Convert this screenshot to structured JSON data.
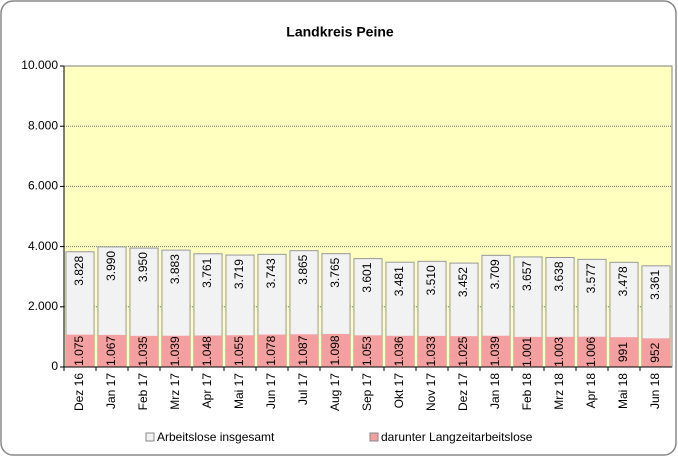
{
  "chart_data": {
    "type": "overlap-bar",
    "title": "Landkreis Peine",
    "categories": [
      "Dez 16",
      "Jan 17",
      "Feb 17",
      "Mrz 17",
      "Apr 17",
      "Mai 17",
      "Jun 17",
      "Jul 17",
      "Aug 17",
      "Sep 17",
      "Okt 17",
      "Nov 17",
      "Dez 17",
      "Jan 18",
      "Feb 18",
      "Mrz 18",
      "Apr 18",
      "Mai 18",
      "Jun 18"
    ],
    "series": [
      {
        "name": "Arbeitslose insgesamt",
        "color": "#f2f2f2",
        "values": [
          3828,
          3990,
          3950,
          3883,
          3761,
          3719,
          3743,
          3865,
          3765,
          3601,
          3481,
          3510,
          3452,
          3709,
          3657,
          3638,
          3577,
          3478,
          3361
        ],
        "value_labels": [
          "3.828",
          "3.990",
          "3.950",
          "3.883",
          "3.761",
          "3.719",
          "3.743",
          "3.865",
          "3.765",
          "3.601",
          "3.481",
          "3.510",
          "3.452",
          "3.709",
          "3.657",
          "3.638",
          "3.577",
          "3.478",
          "3.361"
        ]
      },
      {
        "name": "darunter Langzeitarbeitslose",
        "color": "#f4a0a0",
        "values": [
          1075,
          1067,
          1035,
          1039,
          1048,
          1055,
          1078,
          1087,
          1098,
          1053,
          1036,
          1033,
          1025,
          1039,
          1001,
          1003,
          1006,
          991,
          952
        ],
        "value_labels": [
          "1.075",
          "1.067",
          "1.035",
          "1.039",
          "1.048",
          "1.055",
          "1.078",
          "1.087",
          "1.098",
          "1.053",
          "1.036",
          "1.033",
          "1.025",
          "1.039",
          "1.001",
          "1.003",
          "1.006",
          "991",
          "952"
        ]
      }
    ],
    "ylim": [
      0,
      10000
    ],
    "yticks": [
      0,
      {
        "value": 2000,
        "label": "2.000"
      },
      {
        "value": 4000,
        "label": "4.000"
      },
      {
        "value": 6000,
        "label": "6.000"
      },
      {
        "value": 8000,
        "label": "8.000"
      },
      {
        "value": 10000,
        "label": "10.000"
      }
    ],
    "grid": true,
    "plot_background": "#ffffc0"
  }
}
